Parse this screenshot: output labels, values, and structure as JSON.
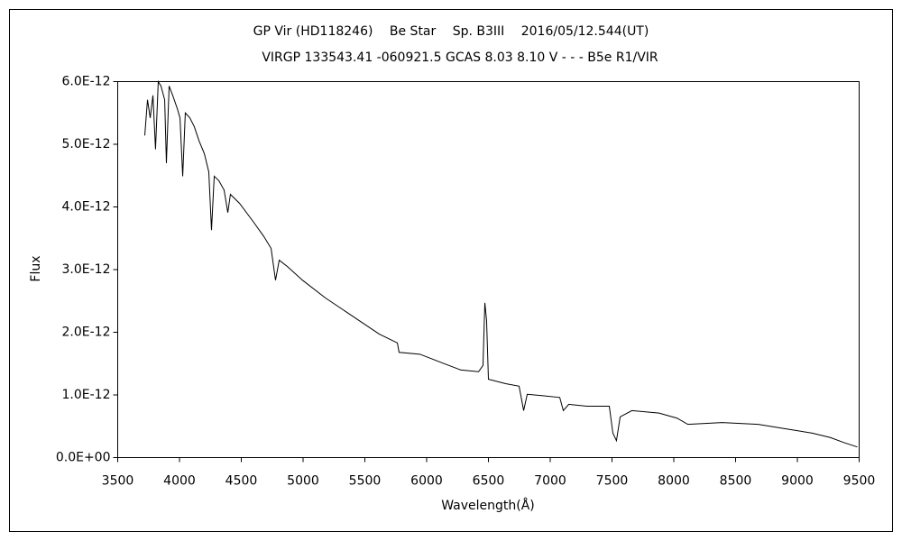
{
  "chart_data": {
    "type": "line",
    "title": "GP Vir (HD118246)　 Be Star　 Sp. B3III　 2016/05/12.544(UT)",
    "subtitle": "VIRGP 133543.41 -060921.5 GCAS 8.03 8.10 V - - - B5e R1/VIR",
    "x_label": "Wavelength(Å)",
    "y_label": "Flux",
    "xlim": [
      3500,
      9500
    ],
    "xticks": [
      3500,
      4000,
      4500,
      5000,
      5500,
      6000,
      6500,
      7000,
      7500,
      8000,
      8500,
      9000,
      9500
    ],
    "ylim": [
      0,
      6e-12
    ],
    "yticks": [
      {
        "value": 0,
        "label": "0.0E+00"
      },
      {
        "value": 1e-12,
        "label": "1.0E-12"
      },
      {
        "value": 2e-12,
        "label": "2.0E-12"
      },
      {
        "value": 3e-12,
        "label": "3.0E-12"
      },
      {
        "value": 4e-12,
        "label": "4.0E-12"
      },
      {
        "value": 5e-12,
        "label": "5.0E-12"
      },
      {
        "value": 6e-12,
        "label": "6.0E-12"
      }
    ],
    "grid": false,
    "x": [
      3719,
      3741,
      3763,
      3785,
      3806,
      3828,
      3850,
      3880,
      3894,
      3916,
      3945,
      3982,
      4004,
      4026,
      4047,
      4084,
      4120,
      4157,
      4201,
      4237,
      4259,
      4281,
      4318,
      4361,
      4391,
      4412,
      4485,
      4595,
      4682,
      4741,
      4777,
      4807,
      4872,
      4996,
      5179,
      5398,
      5617,
      5763,
      5777,
      5945,
      6128,
      6274,
      6420,
      6456,
      6471,
      6485,
      6500,
      6639,
      6748,
      6785,
      6814,
      6931,
      7077,
      7106,
      7150,
      7296,
      7478,
      7507,
      7536,
      7566,
      7661,
      7880,
      8026,
      8114,
      8391,
      8683,
      8902,
      9121,
      9267,
      9376,
      9485
    ],
    "series": [
      {
        "color": "#000000",
        "values": [
          5.14e-12,
          5.71e-12,
          5.42e-12,
          5.78e-12,
          4.92e-12,
          6e-12,
          5.93e-12,
          5.71e-12,
          4.7e-12,
          5.93e-12,
          5.78e-12,
          5.57e-12,
          5.42e-12,
          4.49e-12,
          5.5e-12,
          5.42e-12,
          5.28e-12,
          5.06e-12,
          4.85e-12,
          4.56e-12,
          3.63e-12,
          4.49e-12,
          4.42e-12,
          4.27e-12,
          3.91e-12,
          4.2e-12,
          4.06e-12,
          3.77e-12,
          3.53e-12,
          3.34e-12,
          2.83e-12,
          3.15e-12,
          3.05e-12,
          2.83e-12,
          2.55e-12,
          2.26e-12,
          1.97e-12,
          1.83e-12,
          1.68e-12,
          1.65e-12,
          1.51e-12,
          1.4e-12,
          1.37e-12,
          1.47e-12,
          2.47e-12,
          2.19e-12,
          1.25e-12,
          1.18e-12,
          1.14e-12,
          7.5e-13,
          1.01e-12,
          9.9e-13,
          9.6e-13,
          7.5e-13,
          8.5e-13,
          8.2e-13,
          8.2e-13,
          3.9e-13,
          2.7e-13,
          6.5e-13,
          7.5e-13,
          7.1e-13,
          6.3e-13,
          5.3e-13,
          5.6e-13,
          5.3e-13,
          4.6e-13,
          3.9e-13,
          3.2e-13,
          2.4e-13,
          1.7e-13
        ]
      }
    ]
  }
}
